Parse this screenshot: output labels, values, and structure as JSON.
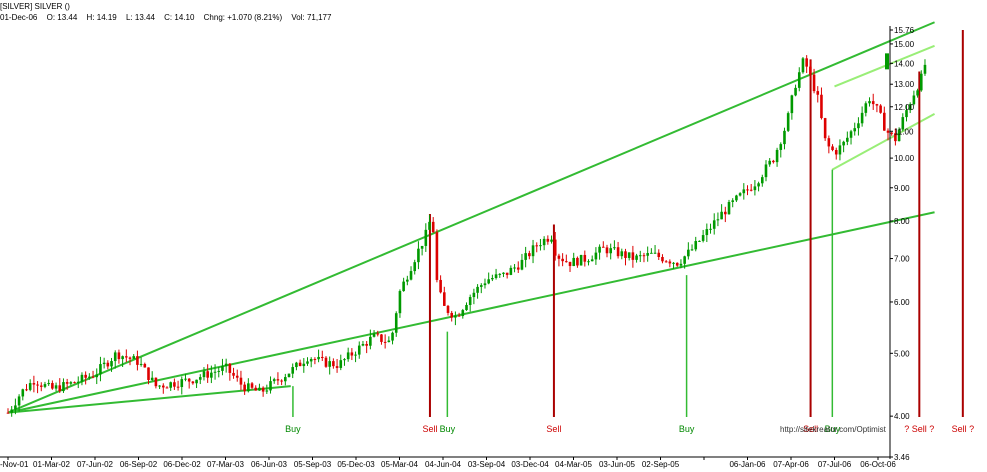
{
  "header": {
    "symbol_line": "[SILVER] SILVER ()",
    "date": "01-Dec-06",
    "open": "O: 13.44",
    "high": "H: 14.19",
    "low": "L: 13.44",
    "close": "C: 14.10",
    "change": "Chng: +1.070 (8.21%)",
    "volume": "Vol: 71,177"
  },
  "watermark": "http://sitekreator.com/Optimist",
  "colors": {
    "up": "#009900",
    "down": "#dd0000",
    "trendline": "#33bb33",
    "channel": "#99ee77",
    "sell_line": "#aa0000",
    "buy_line": "#33bb33",
    "sell_text": "#cc0000",
    "buy_text": "#008800"
  },
  "chart_data": {
    "type": "candlestick",
    "yscale": "log",
    "ylim": [
      3.46,
      15.76
    ],
    "y_ticks": [
      "15.76",
      "15.00",
      "14.00",
      "13.00",
      "12.00",
      "11.00",
      "10.00",
      "9.00",
      "8.00",
      "7.00",
      "6.00",
      "5.00",
      "4.00",
      "3.46"
    ],
    "y_tick_values": [
      15.76,
      15,
      14,
      13,
      12,
      11,
      10,
      9,
      8,
      7,
      6,
      5,
      4,
      3.46
    ],
    "x_ticks": [
      "-Nov-01",
      "01-Mar-02",
      "07-Jun-02",
      "06-Sep-02",
      "06-Dec-02",
      "07-Mar-03",
      "06-Jun-03",
      "05-Sep-03",
      "05-Dec-03",
      "05-Mar-04",
      "04-Jun-04",
      "03-Sep-04",
      "03-Dec-04",
      "04-Mar-05",
      "03-Jun-05",
      "02-Sep-05",
      "",
      "06-Jan-06",
      "07-Apr-06",
      "07-Jul-06",
      "06-Oct-06"
    ],
    "close_path": [
      [
        0,
        4.05
      ],
      [
        0.3,
        4.35
      ],
      [
        0.6,
        4.55
      ],
      [
        1.0,
        4.4
      ],
      [
        1.5,
        4.5
      ],
      [
        2.0,
        4.65
      ],
      [
        2.5,
        5.0
      ],
      [
        3.0,
        4.85
      ],
      [
        3.4,
        4.45
      ],
      [
        3.8,
        4.5
      ],
      [
        4.2,
        4.55
      ],
      [
        4.6,
        4.65
      ],
      [
        5.0,
        4.75
      ],
      [
        5.4,
        4.45
      ],
      [
        5.8,
        4.35
      ],
      [
        6.2,
        4.55
      ],
      [
        6.6,
        4.75
      ],
      [
        6.9,
        4.95
      ],
      [
        7.2,
        4.85
      ],
      [
        7.6,
        4.8
      ],
      [
        8.0,
        5.05
      ],
      [
        8.4,
        5.3
      ],
      [
        8.8,
        5.2
      ],
      [
        9.0,
        6.2
      ],
      [
        9.3,
        6.9
      ],
      [
        9.6,
        7.6
      ],
      [
        9.75,
        8.2
      ],
      [
        9.85,
        6.5
      ],
      [
        10.0,
        5.9
      ],
      [
        10.3,
        5.7
      ],
      [
        10.6,
        6.1
      ],
      [
        11.0,
        6.5
      ],
      [
        11.4,
        6.6
      ],
      [
        11.8,
        6.9
      ],
      [
        12.2,
        7.4
      ],
      [
        12.5,
        7.6
      ],
      [
        12.6,
        7.1
      ],
      [
        12.9,
        6.9
      ],
      [
        13.3,
        7.0
      ],
      [
        13.7,
        7.25
      ],
      [
        14.0,
        7.15
      ],
      [
        14.4,
        7.0
      ],
      [
        14.8,
        7.1
      ],
      [
        15.1,
        7.0
      ],
      [
        15.4,
        6.9
      ],
      [
        15.7,
        7.2
      ],
      [
        16.0,
        7.6
      ],
      [
        16.4,
        8.2
      ],
      [
        16.8,
        8.7
      ],
      [
        17.2,
        9.2
      ],
      [
        17.6,
        10.0
      ],
      [
        17.9,
        11.3
      ],
      [
        18.1,
        13.0
      ],
      [
        18.3,
        14.2
      ],
      [
        18.45,
        13.3
      ],
      [
        18.6,
        12.5
      ],
      [
        18.8,
        10.5
      ],
      [
        19.0,
        10.2
      ],
      [
        19.2,
        10.5
      ],
      [
        19.5,
        11.3
      ],
      [
        19.8,
        12.4
      ],
      [
        20.0,
        11.8
      ],
      [
        20.2,
        11.0
      ],
      [
        20.4,
        10.7
      ],
      [
        20.6,
        11.6
      ],
      [
        20.8,
        12.5
      ],
      [
        21.0,
        13.3
      ],
      [
        21.1,
        14.1
      ]
    ],
    "trendlines": [
      {
        "kind": "support",
        "from": [
          0,
          4.05
        ],
        "to": [
          21.3,
          8.25
        ]
      },
      {
        "kind": "resistance",
        "from": [
          0,
          4.05
        ],
        "to": [
          21.3,
          16.2
        ]
      },
      {
        "kind": "support",
        "from": [
          0,
          4.05
        ],
        "to": [
          6.5,
          4.45
        ]
      },
      {
        "kind": "channel-upper",
        "from": [
          19.0,
          12.9
        ],
        "to": [
          21.3,
          14.9
        ]
      },
      {
        "kind": "channel-lower",
        "from": [
          18.95,
          9.6
        ],
        "to": [
          21.3,
          11.7
        ]
      }
    ],
    "signals": [
      {
        "label": "Buy",
        "type": "buy",
        "x": 6.55,
        "from_price": 4.45
      },
      {
        "label": "Sell",
        "type": "sell",
        "x": 9.7,
        "from_price": 8.2
      },
      {
        "label": "Buy",
        "type": "buy",
        "x": 10.1,
        "from_price": 5.4
      },
      {
        "label": "Sell",
        "type": "sell",
        "x": 12.55,
        "from_price": 7.9
      },
      {
        "label": "Buy",
        "type": "buy",
        "x": 15.6,
        "from_price": 6.6
      },
      {
        "label": "Sell",
        "type": "sell",
        "x": 18.45,
        "from_price": 14.2
      },
      {
        "label": "Buy",
        "type": "buy",
        "x": 18.95,
        "from_price": 9.6
      },
      {
        "label": "? Sell ?",
        "type": "sell",
        "x": 20.95,
        "from_price": 13.6
      },
      {
        "label": "Sell ?",
        "type": "sell",
        "x": 21.95,
        "from_price": 15.76
      }
    ],
    "last_close": 14.1
  }
}
